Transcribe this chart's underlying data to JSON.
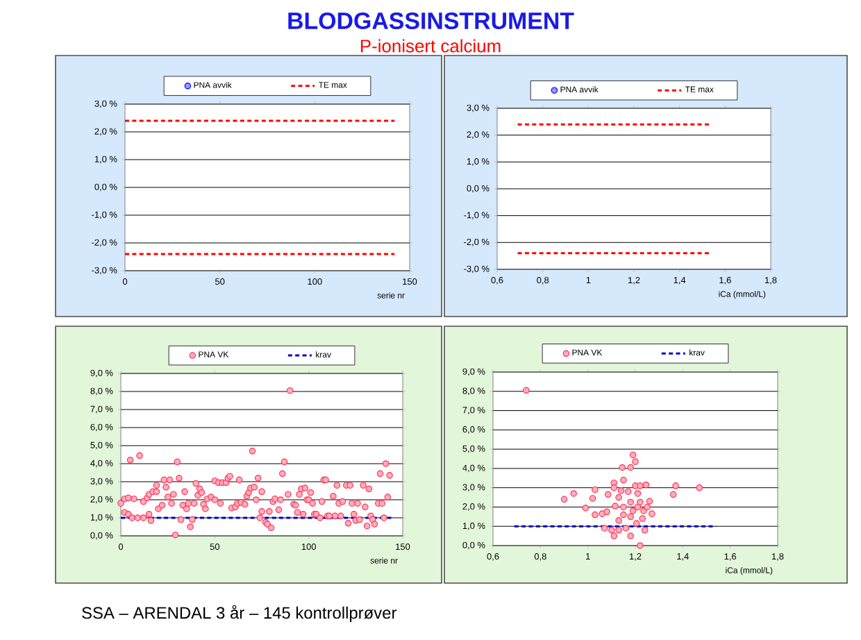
{
  "chart_data": [
    {
      "type": "scatter",
      "title": "BLODGASSINSTRUMENT",
      "subtitle": "P-ionisert calcium",
      "xlabel": "serie nr",
      "xlim": [
        0,
        150
      ],
      "xticks": [
        0,
        50,
        100,
        150
      ],
      "ylim": [
        -3,
        3
      ],
      "yticks": [
        {
          "value": -3,
          "label": "-3,0 %"
        },
        {
          "value": -2,
          "label": "-2,0 %"
        },
        {
          "value": -1,
          "label": "-1,0 %"
        },
        {
          "value": 0,
          "label": "0,0 %"
        },
        {
          "value": 1,
          "label": "1,0 %"
        },
        {
          "value": 2,
          "label": "2,0 %"
        },
        {
          "value": 3,
          "label": "3,0 %"
        }
      ],
      "grid": "y",
      "legend": "top",
      "series": [
        {
          "name": "PNA avvik",
          "type": "scatter",
          "color": "#0000ff"
        },
        {
          "name": "TE max",
          "type": "line",
          "marker": "none",
          "line_style": "dashed",
          "color": "#ff0000",
          "x": [
            0,
            142
          ],
          "values": [
            2.4,
            2.4
          ]
        },
        {
          "type": "line",
          "marker": "none",
          "line_style": "dashed",
          "color": "#ff0000",
          "x": [
            0,
            142
          ],
          "values": [
            -2.4,
            -2.4
          ]
        }
      ]
    },
    {
      "type": "scatter",
      "xlabel": "iCa (mmol/L)",
      "xlim": [
        0.6,
        1.8
      ],
      "xticks": [
        {
          "value": 0.6,
          "label": "0,6"
        },
        {
          "value": 0.8,
          "label": "0,8"
        },
        {
          "value": 1,
          "label": "1"
        },
        {
          "value": 1.2,
          "label": "1,2"
        },
        {
          "value": 1.4,
          "label": "1,4"
        },
        {
          "value": 1.6,
          "label": "1,6"
        },
        {
          "value": 1.8,
          "label": "1,8"
        }
      ],
      "ylim": [
        -3,
        3
      ],
      "yticks": [
        {
          "value": -3,
          "label": "-3,0 %"
        },
        {
          "value": -2,
          "label": "-2,0 %"
        },
        {
          "value": -1,
          "label": "-1,0 %"
        },
        {
          "value": 0,
          "label": "0,0 %"
        },
        {
          "value": 1,
          "label": "1,0 %"
        },
        {
          "value": 2,
          "label": "2,0 %"
        },
        {
          "value": 3,
          "label": "3,0 %"
        }
      ],
      "grid": "y",
      "legend": "top",
      "series": [
        {
          "name": "PNA avvik",
          "type": "scatter",
          "color": "#0000ff"
        },
        {
          "name": "TE max",
          "type": "line",
          "marker": "none",
          "line_style": "dashed",
          "color": "#ff0000",
          "x": [
            0.69,
            1.53
          ],
          "values": [
            2.4,
            2.4
          ]
        },
        {
          "type": "line",
          "marker": "none",
          "line_style": "dashed",
          "color": "#ff0000",
          "x": [
            0.69,
            1.53
          ],
          "values": [
            -2.4,
            -2.4
          ]
        }
      ]
    },
    {
      "type": "scatter",
      "xlabel": "serie nr",
      "xlim": [
        0,
        150
      ],
      "xticks": [
        0,
        50,
        100,
        150
      ],
      "ylim": [
        0,
        9
      ],
      "yticks": [
        {
          "value": 0,
          "label": "0,0 %"
        },
        {
          "value": 1,
          "label": "1,0 %"
        },
        {
          "value": 2,
          "label": "2,0 %"
        },
        {
          "value": 3,
          "label": "3,0 %"
        },
        {
          "value": 4,
          "label": "4,0 %"
        },
        {
          "value": 5,
          "label": "5,0 %"
        },
        {
          "value": 6,
          "label": "6,0 %"
        },
        {
          "value": 7,
          "label": "7,0 %"
        },
        {
          "value": 8,
          "label": "8,0 %"
        },
        {
          "value": 9,
          "label": "9,0 %"
        }
      ],
      "grid": "y",
      "legend": "top",
      "series": [
        {
          "name": "PNA VK",
          "type": "scatter",
          "color": "#ff3355",
          "x": [
            0,
            2,
            2,
            4,
            4,
            5,
            6,
            7,
            9,
            10,
            12,
            12,
            14,
            15,
            15,
            16,
            17,
            19,
            19,
            20,
            22,
            23,
            24,
            25,
            26,
            27,
            28,
            29,
            30,
            31,
            32,
            33,
            34,
            35,
            36,
            37,
            38,
            39,
            40,
            41,
            42,
            43,
            44,
            45,
            46,
            48,
            50,
            50,
            52,
            53,
            54,
            56,
            57,
            58,
            59,
            61,
            62,
            63,
            64,
            66,
            67,
            68,
            69,
            70,
            71,
            72,
            73,
            74,
            75,
            75,
            77,
            78,
            79,
            80,
            81,
            82,
            84,
            85,
            86,
            87,
            89,
            90,
            92,
            93,
            94,
            95,
            96,
            97,
            98,
            99,
            100,
            101,
            102,
            103,
            104,
            106,
            107,
            108,
            109,
            110,
            111,
            113,
            114,
            115,
            116,
            117,
            118,
            120,
            121,
            122,
            123,
            124,
            125,
            126,
            127,
            129,
            130,
            131,
            132,
            133,
            134,
            135,
            137,
            138,
            139,
            140,
            141,
            142,
            143
          ],
          "values": [
            1.8,
            2.05,
            1.3,
            1.2,
            2.1,
            4.2,
            1.0,
            2.05,
            1.0,
            4.45,
            1.0,
            1.9,
            2.1,
            1.2,
            2.3,
            0.85,
            2.45,
            2.45,
            2.8,
            1.5,
            1.7,
            3.1,
            2.7,
            2.15,
            3.1,
            1.8,
            2.3,
            0.05,
            4.1,
            3.2,
            0.9,
            1.7,
            2.45,
            1.5,
            1.8,
            0.5,
            0.9,
            1.8,
            2.9,
            2.25,
            2.6,
            2.4,
            1.75,
            1.5,
            2.05,
            2.15,
            2.0,
            3.05,
            2.95,
            1.8,
            2.95,
            2.95,
            3.2,
            3.3,
            1.55,
            1.6,
            1.8,
            3.1,
            1.85,
            1.75,
            2.2,
            2.4,
            2.65,
            4.7,
            2.7,
            2.0,
            3.2,
            1.0,
            2.45,
            1.35,
            0.75,
            0.65,
            1.35,
            0.45,
            1.9,
            2.05,
            1.45,
            2.0,
            3.45,
            4.1,
            2.3,
            8.05,
            1.75,
            1.7,
            1.3,
            2.3,
            2.6,
            1.2,
            2.65,
            2.0,
            2.0,
            2.4,
            1.8,
            1.2,
            1.2,
            1.0,
            1.9,
            3.1,
            3.1,
            1.1,
            1.1,
            2.2,
            1.1,
            2.8,
            1.8,
            1.1,
            1.9,
            2.8,
            0.7,
            2.8,
            1.8,
            1.2,
            0.85,
            1.8,
            0.9,
            2.8,
            1.6,
            0.55,
            2.6,
            1.1,
            0.9,
            0.65,
            1.8,
            3.45,
            1.8,
            1.0,
            4.0,
            2.15,
            3.35
          ]
        },
        {
          "name": "krav",
          "type": "line",
          "marker": "none",
          "line_style": "dashed",
          "color": "#0000cc",
          "x": [
            0,
            145
          ],
          "values": [
            1,
            1
          ]
        }
      ]
    },
    {
      "type": "scatter",
      "xlabel": "iCa (mmol/L)",
      "annotations": [
        "SSA – ARENDAL   3 år – 145 kontrollprøver"
      ],
      "xlim": [
        0.6,
        1.8
      ],
      "xticks": [
        {
          "value": 0.6,
          "label": "0,6"
        },
        {
          "value": 0.8,
          "label": "0,8"
        },
        {
          "value": 1,
          "label": "1"
        },
        {
          "value": 1.2,
          "label": "1,2"
        },
        {
          "value": 1.4,
          "label": "1,4"
        },
        {
          "value": 1.6,
          "label": "1,6"
        },
        {
          "value": 1.8,
          "label": "1,8"
        }
      ],
      "ylim": [
        0,
        9
      ],
      "yticks": [
        {
          "value": 0,
          "label": "0,0 %"
        },
        {
          "value": 1,
          "label": "1,0 %"
        },
        {
          "value": 2,
          "label": "2,0 %"
        },
        {
          "value": 3,
          "label": "3,0 %"
        },
        {
          "value": 4,
          "label": "4,0 %"
        },
        {
          "value": 5,
          "label": "5,0 %"
        },
        {
          "value": 6,
          "label": "6,0 %"
        },
        {
          "value": 7,
          "label": "7,0 %"
        },
        {
          "value": 8,
          "label": "8,0 %"
        },
        {
          "value": 9,
          "label": "9,0 %"
        }
      ],
      "grid": "y",
      "legend": "top",
      "series": [
        {
          "name": "PNA VK",
          "type": "scatter",
          "color": "#ff3355",
          "x": [
            0.74,
            0.9,
            0.94,
            0.99,
            1.02,
            1.03,
            1.03,
            1.06,
            1.07,
            1.08,
            1.085,
            1.1,
            1.11,
            1.11,
            1.11,
            1.115,
            1.13,
            1.13,
            1.13,
            1.14,
            1.145,
            1.15,
            1.15,
            1.15,
            1.16,
            1.17,
            1.18,
            1.18,
            1.18,
            1.18,
            1.19,
            1.19,
            1.2,
            1.2,
            1.205,
            1.21,
            1.21,
            1.22,
            1.22,
            1.22,
            1.23,
            1.235,
            1.24,
            1.245,
            1.25,
            1.26,
            1.27,
            1.36,
            1.37,
            1.47
          ],
          "values": [
            8.05,
            2.4,
            2.7,
            1.95,
            2.45,
            2.9,
            1.6,
            1.65,
            0.9,
            1.75,
            2.65,
            0.8,
            3.25,
            3.0,
            0.5,
            2.05,
            1.3,
            2.5,
            0.8,
            2.85,
            4.05,
            3.4,
            1.6,
            2.0,
            0.9,
            2.8,
            4.05,
            0.5,
            1.5,
            2.25,
            4.7,
            1.8,
            4.35,
            3.1,
            1.15,
            2.7,
            2.0,
            0.0,
            2.25,
            3.1,
            1.4,
            1.8,
            0.8,
            3.15,
            2.0,
            2.3,
            1.65,
            2.65,
            3.1,
            3.0
          ]
        },
        {
          "name": "krav",
          "type": "line",
          "marker": "none",
          "line_style": "dashed",
          "color": "#0000cc",
          "x": [
            0.69,
            1.54
          ],
          "values": [
            1,
            1
          ]
        }
      ]
    }
  ]
}
